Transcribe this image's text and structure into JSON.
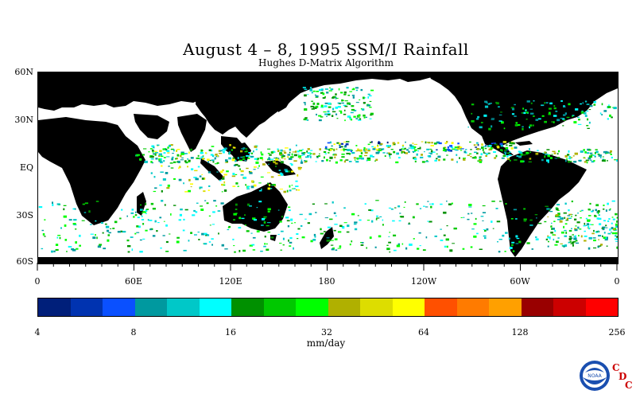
{
  "map": {
    "title": "August 4 – 8, 1995 SSM/I Rainfall",
    "subtitle": "Hughes D-Matrix Algorithm",
    "lat_labels": [
      "60N",
      "30N",
      "EQ",
      "30S",
      "60S"
    ],
    "lon_labels": [
      "0",
      "60E",
      "120E",
      "180",
      "120W",
      "60W",
      "0"
    ]
  },
  "colorbar": {
    "colors": [
      "#001f7a",
      "#0033b0",
      "#0a50ff",
      "#00999f",
      "#00c8c8",
      "#00ffff",
      "#009000",
      "#00c800",
      "#00ff00",
      "#b0b000",
      "#dddd00",
      "#ffff00",
      "#ff5000",
      "#ff7b00",
      "#ffa000",
      "#990000",
      "#cc0000",
      "#ff0000"
    ],
    "tick_labels": [
      "4",
      "8",
      "16",
      "32",
      "64",
      "128",
      "256"
    ],
    "units": "mm/day"
  },
  "logo": {
    "noaa_text": "NOAA",
    "cdc_letters": [
      "C",
      "D",
      "C"
    ]
  }
}
